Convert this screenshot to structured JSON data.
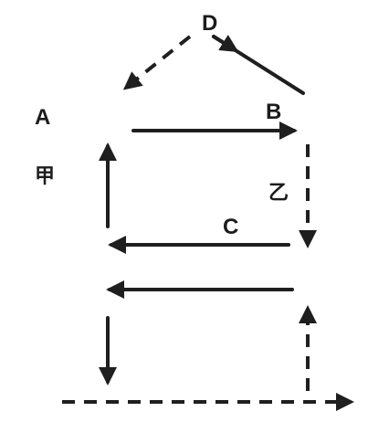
{
  "labels": {
    "a": "A",
    "b": "B",
    "c": "C",
    "d": "D",
    "jia": "甲",
    "yi": "乙"
  },
  "colors": {
    "ink": "#1f1f1f",
    "background": "#ffffff"
  }
}
